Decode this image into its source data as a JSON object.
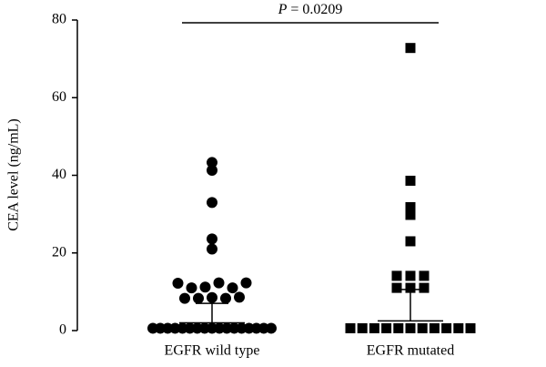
{
  "chart_data": {
    "type": "strip",
    "y_label": "CEA level (ng/mL)",
    "annotation": {
      "italic": "P",
      "text": "= 0.0209"
    },
    "categories": [
      "EGFR wild type",
      "EGFR mutated"
    ],
    "series": [
      {
        "marker": "circle",
        "color": "#000000",
        "values": [
          43.3,
          41.3,
          33,
          23.6,
          21,
          12.2,
          11,
          11.2,
          12.3,
          11,
          12.3,
          8.3,
          8.3,
          8.5,
          8.3,
          8.6,
          0.6,
          0.6,
          0.6,
          0.6,
          0.6,
          0.6,
          0.6,
          0.6,
          0.6,
          0.6,
          0.6,
          0.6,
          0.6,
          0.6,
          0.6,
          0.6,
          0.6
        ],
        "center": 2,
        "upper": 7
      },
      {
        "marker": "square",
        "color": "#000000",
        "values": [
          72.8,
          38.6,
          31.8,
          29.8,
          23,
          14.1,
          14.1,
          14.1,
          11,
          11,
          11,
          0.6,
          0.6,
          0.6,
          0.6,
          0.6,
          0.6,
          0.6,
          0.6,
          0.6,
          0.6,
          0.6
        ],
        "center": 2.5,
        "upper": 10.6
      }
    ],
    "ylim": [
      0,
      80
    ],
    "yticks": [
      0,
      20,
      40,
      60,
      80
    ]
  }
}
